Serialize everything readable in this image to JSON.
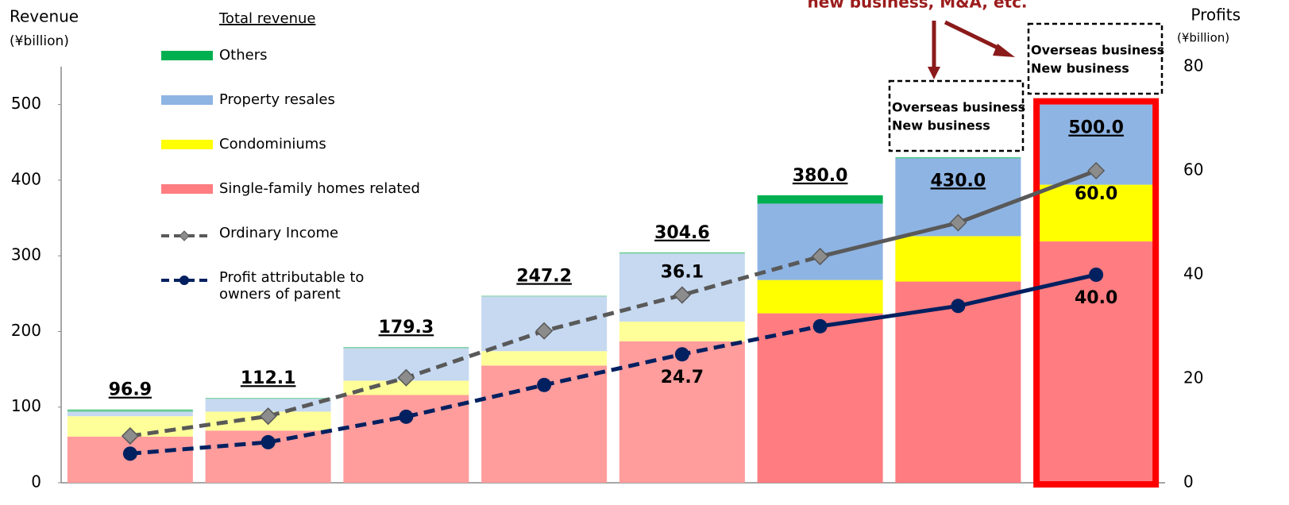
{
  "chart_data": {
    "type": "stacked_bar_line",
    "categories": [
      null,
      null,
      null,
      null,
      null,
      null,
      null,
      null
    ],
    "y_label": "Revenue",
    "y_unit": "(¥billion)",
    "y2_label": "Profits",
    "y2_unit": "(¥billion)",
    "legend_title": "Total revenue",
    "ylim": [
      0,
      550
    ],
    "yticks": [
      0,
      100,
      200,
      300,
      400,
      500
    ],
    "y2lim": [
      0,
      80
    ],
    "y2ticks": [
      0,
      20,
      40,
      60,
      80
    ],
    "series": [
      {
        "name": "Single-family homes related",
        "color": "#ff7c80",
        "colors": [
          "#ff9c9c",
          "#ff9c9c",
          "#ff9c9c",
          "#ff9c9c",
          "#ff9c9c",
          "#ff7c80",
          "#ff7c80",
          "#ff7c80"
        ],
        "values": [
          61,
          69,
          116,
          155,
          187,
          224,
          266,
          319
        ]
      },
      {
        "name": "Condominiums",
        "color": "#ffff00",
        "colors": [
          "#ffff99",
          "#ffff99",
          "#ffff99",
          "#ffff99",
          "#ffff99",
          "#ffff00",
          "#ffff00",
          "#ffff00"
        ],
        "values": [
          27,
          25,
          19,
          19,
          26,
          44,
          60,
          75
        ]
      },
      {
        "name": "Property resales",
        "color": "#8eb4e3",
        "colors": [
          "#c6d9f1",
          "#c6d9f1",
          "#c6d9f1",
          "#c6d9f1",
          "#c6d9f1",
          "#8eb4e3",
          "#8eb4e3",
          "#8eb4e3"
        ],
        "values": [
          6,
          17,
          43,
          72.3,
          90,
          101,
          103,
          106
        ]
      },
      {
        "name": "Others",
        "color": "#00b050",
        "colors": [
          "#66cc8f",
          "#66cc8f",
          "#66cc8f",
          "#66cc8f",
          "#66cc8f",
          "#00b050",
          "#00b050",
          "#00b050"
        ],
        "values": [
          2.9,
          1.1,
          1.3,
          0.9,
          1.6,
          11,
          1,
          0
        ]
      }
    ],
    "totals": [
      96.9,
      112.1,
      179.3,
      247.2,
      304.6,
      380,
      430,
      500
    ],
    "total_labels": [
      "96.9",
      "112.1",
      "179.3",
      "247.2",
      "304.6",
      "380.0",
      "430.0",
      "500.0"
    ],
    "lines": [
      {
        "name": "Ordinary Income",
        "color": "#595959",
        "marker": "diamond",
        "axis": "y2",
        "solid_from": 5,
        "values": [
          9,
          12.8,
          20.2,
          29.2,
          36.1,
          43.5,
          50,
          60
        ],
        "value_labels": [
          null,
          null,
          null,
          null,
          "36.1",
          null,
          null,
          "60.0"
        ]
      },
      {
        "name": "Profit attributable to owners of parent",
        "color": "#002060",
        "marker": "circle",
        "axis": "y2",
        "solid_from": 5,
        "values": [
          5.6,
          7.8,
          12.7,
          18.8,
          24.7,
          30.1,
          34,
          40
        ],
        "value_labels": [
          null,
          null,
          null,
          null,
          "24.7",
          null,
          null,
          "40.0"
        ]
      }
    ],
    "annotations": [
      "new business, M&A, etc.",
      "Overseas business",
      "New business",
      "Overseas business",
      "New business"
    ]
  }
}
